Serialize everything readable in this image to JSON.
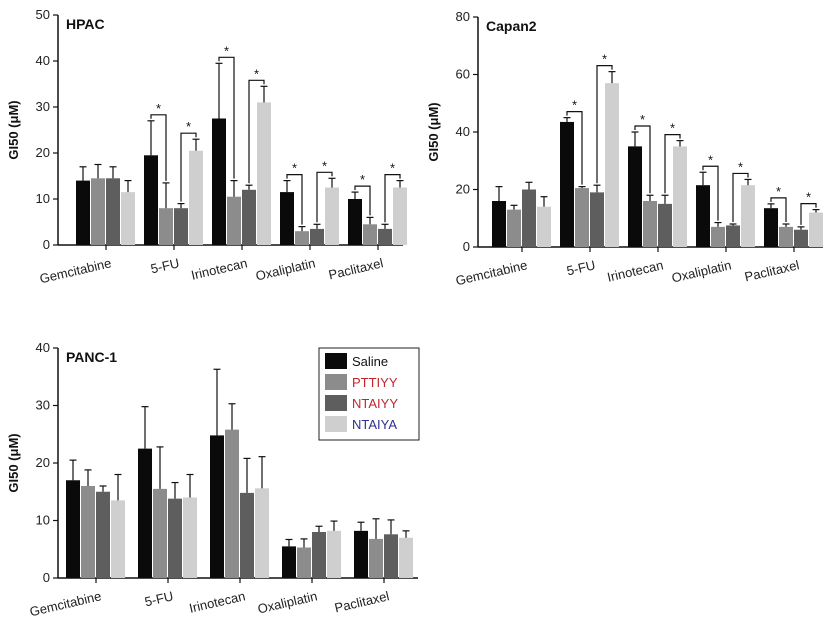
{
  "legend": [
    {
      "name": "Saline",
      "color": "#0a0a0a",
      "text_color": "#111111"
    },
    {
      "name": "PTTIYY",
      "color": "#8c8c8c",
      "text_color": "#c0272d"
    },
    {
      "name": "NTAIYY",
      "color": "#5e5e5e",
      "text_color": "#c0272d"
    },
    {
      "name": "NTAIYA",
      "color": "#cfcfcf",
      "text_color": "#2e3192"
    }
  ],
  "chart_data": [
    {
      "type": "bar",
      "title": "HPAC",
      "ylabel": "GI50 (μM)",
      "ylim": [
        0,
        50
      ],
      "yticks": [
        0,
        10,
        20,
        30,
        40,
        50
      ],
      "categories": [
        "Gemcitabine",
        "5-FU",
        "Irinotecan",
        "Oxaliplatin",
        "Paclitaxel"
      ],
      "series": [
        {
          "name": "Saline",
          "values": [
            14,
            19.5,
            27.5,
            11.5,
            10
          ],
          "errors": [
            3,
            7.5,
            12,
            2.5,
            1.5
          ]
        },
        {
          "name": "PTTIYY",
          "values": [
            14.5,
            8,
            10.5,
            3,
            4.5
          ],
          "errors": [
            3,
            5.5,
            3.5,
            1,
            1.5
          ]
        },
        {
          "name": "NTAIYY",
          "values": [
            14.5,
            8,
            12,
            3.5,
            3.5
          ],
          "errors": [
            2.5,
            1,
            1,
            1,
            1
          ]
        },
        {
          "name": "NTAIYA",
          "values": [
            11.5,
            20.5,
            31,
            12.5,
            12.5
          ],
          "errors": [
            2.5,
            2.5,
            3.5,
            2,
            1.5
          ]
        }
      ],
      "significance": [
        {
          "category": 1,
          "pairs": [
            [
              0,
              1
            ],
            [
              2,
              3
            ]
          ]
        },
        {
          "category": 2,
          "pairs": [
            [
              0,
              1
            ],
            [
              2,
              3
            ]
          ]
        },
        {
          "category": 3,
          "pairs": [
            [
              0,
              1
            ],
            [
              2,
              3
            ]
          ]
        },
        {
          "category": 4,
          "pairs": [
            [
              0,
              1
            ],
            [
              2,
              3
            ]
          ]
        }
      ],
      "star_label": "*"
    },
    {
      "type": "bar",
      "title": "Capan2",
      "ylabel": "GI50 (μM)",
      "ylim": [
        0,
        80
      ],
      "yticks": [
        0,
        20,
        40,
        60,
        80
      ],
      "categories": [
        "Gemcitabine",
        "5-FU",
        "Irinotecan",
        "Oxaliplatin",
        "Paclitaxel"
      ],
      "series": [
        {
          "name": "Saline",
          "values": [
            16,
            43.5,
            35,
            21.5,
            13.5
          ],
          "errors": [
            5,
            1.5,
            5,
            4.5,
            1.5
          ]
        },
        {
          "name": "PTTIYY",
          "values": [
            13,
            20.5,
            16,
            7,
            7
          ],
          "errors": [
            1.5,
            0.5,
            2,
            1.5,
            1
          ]
        },
        {
          "name": "NTAIYY",
          "values": [
            20,
            19,
            15,
            7.5,
            6
          ],
          "errors": [
            2.5,
            2.5,
            3,
            0.5,
            1
          ]
        },
        {
          "name": "NTAIYA",
          "values": [
            14,
            57,
            35,
            21.5,
            12
          ],
          "errors": [
            3.5,
            4,
            2,
            2,
            1
          ]
        }
      ],
      "significance": [
        {
          "category": 1,
          "pairs": [
            [
              0,
              1
            ],
            [
              2,
              3
            ]
          ]
        },
        {
          "category": 2,
          "pairs": [
            [
              0,
              1
            ],
            [
              2,
              3
            ]
          ]
        },
        {
          "category": 3,
          "pairs": [
            [
              0,
              1
            ],
            [
              2,
              3
            ]
          ]
        },
        {
          "category": 4,
          "pairs": [
            [
              0,
              1
            ],
            [
              2,
              3
            ]
          ]
        }
      ],
      "star_label": "*"
    },
    {
      "type": "bar",
      "title": "PANC-1",
      "ylabel": "GI50 (μM)",
      "ylim": [
        0,
        40
      ],
      "yticks": [
        0,
        10,
        20,
        30,
        40
      ],
      "categories": [
        "Gemcitabine",
        "5-FU",
        "Irinotecan",
        "Oxaliplatin",
        "Paclitaxel"
      ],
      "series": [
        {
          "name": "Saline",
          "values": [
            17,
            22.5,
            24.8,
            5.5,
            8.2
          ],
          "errors": [
            3.5,
            7.3,
            11.5,
            1.2,
            1.5
          ]
        },
        {
          "name": "PTTIYY",
          "values": [
            16,
            15.5,
            25.8,
            5.3,
            6.8
          ],
          "errors": [
            2.8,
            7.3,
            4.5,
            1.5,
            3.5
          ]
        },
        {
          "name": "NTAIYY",
          "values": [
            15,
            13.8,
            14.8,
            8,
            7.6
          ],
          "errors": [
            1,
            2.8,
            6,
            1,
            2.5
          ]
        },
        {
          "name": "NTAIYA",
          "values": [
            13.5,
            14,
            15.6,
            8.2,
            7
          ],
          "errors": [
            4.5,
            4,
            5.5,
            1.7,
            1.2
          ]
        }
      ],
      "significance": [],
      "star_label": "*"
    }
  ]
}
